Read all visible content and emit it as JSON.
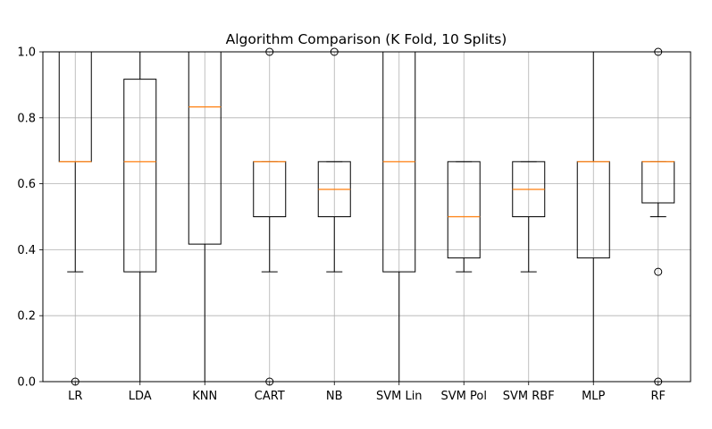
{
  "chart_data": {
    "type": "box",
    "title": "Algorithm Comparison (K Fold, 10 Splits)",
    "xlabel": "",
    "ylabel": "",
    "ylim": [
      0,
      1
    ],
    "yticks": [
      0.0,
      0.2,
      0.4,
      0.6,
      0.8,
      1.0
    ],
    "ytick_labels": [
      "0.0",
      "0.2",
      "0.4",
      "0.6",
      "0.8",
      "1.0"
    ],
    "grid": true,
    "colors": {
      "box": "#000000",
      "median": "#ff7f0e",
      "grid": "#b0b0b0"
    },
    "categories": [
      "LR",
      "LDA",
      "KNN",
      "CART",
      "NB",
      "SVM Lin",
      "SVM Pol",
      "SVM RBF",
      "MLP",
      "RF"
    ],
    "boxes": [
      {
        "label": "LR",
        "q1": 0.667,
        "median": 0.667,
        "q3": 1.0,
        "whisker_low": 0.333,
        "whisker_high": 1.0,
        "fliers": [
          0.0
        ]
      },
      {
        "label": "LDA",
        "q1": 0.333,
        "median": 0.667,
        "q3": 0.917,
        "whisker_low": 0.0,
        "whisker_high": 1.0,
        "fliers": []
      },
      {
        "label": "KNN",
        "q1": 0.417,
        "median": 0.833,
        "q3": 1.0,
        "whisker_low": 0.0,
        "whisker_high": 1.0,
        "fliers": []
      },
      {
        "label": "CART",
        "q1": 0.5,
        "median": 0.667,
        "q3": 0.667,
        "whisker_low": 0.333,
        "whisker_high": 0.667,
        "fliers": [
          0.0,
          1.0
        ]
      },
      {
        "label": "NB",
        "q1": 0.5,
        "median": 0.583,
        "q3": 0.667,
        "whisker_low": 0.333,
        "whisker_high": 0.667,
        "fliers": [
          1.0
        ]
      },
      {
        "label": "SVM Lin",
        "q1": 0.333,
        "median": 0.667,
        "q3": 1.0,
        "whisker_low": 0.0,
        "whisker_high": 1.0,
        "fliers": []
      },
      {
        "label": "SVM Pol",
        "q1": 0.375,
        "median": 0.5,
        "q3": 0.667,
        "whisker_low": 0.333,
        "whisker_high": 0.667,
        "fliers": []
      },
      {
        "label": "SVM RBF",
        "q1": 0.5,
        "median": 0.583,
        "q3": 0.667,
        "whisker_low": 0.333,
        "whisker_high": 0.667,
        "fliers": []
      },
      {
        "label": "MLP",
        "q1": 0.375,
        "median": 0.667,
        "q3": 0.667,
        "whisker_low": 0.0,
        "whisker_high": 1.0,
        "fliers": []
      },
      {
        "label": "RF",
        "q1": 0.542,
        "median": 0.667,
        "q3": 0.667,
        "whisker_low": 0.5,
        "whisker_high": 0.667,
        "fliers": [
          0.0,
          0.333,
          1.0
        ]
      }
    ]
  }
}
